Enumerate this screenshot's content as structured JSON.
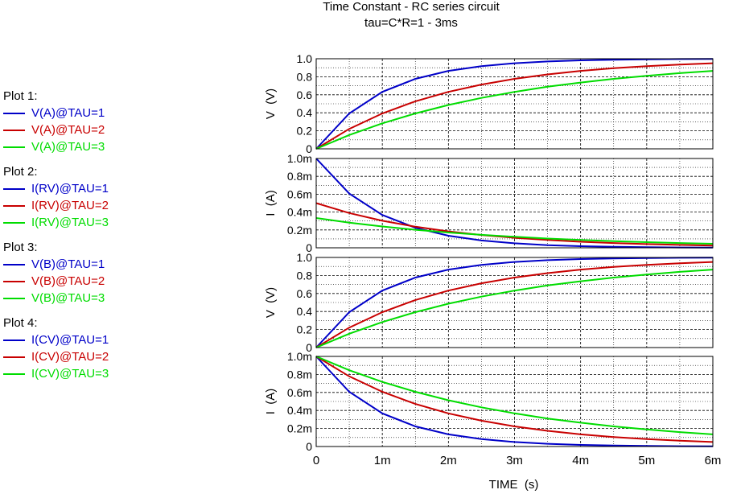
{
  "title": "Time Constant  -  RC series circuit",
  "subtitle": "tau=C*R=1 - 3ms",
  "colors": {
    "tau1": "#0000c8",
    "tau2": "#c80000",
    "tau3": "#00dc00",
    "grid": "#000000"
  },
  "legend": [
    {
      "heading": "Plot 1:",
      "entries": [
        {
          "label": "V(A)@TAU=1",
          "color": "#0000c8"
        },
        {
          "label": "V(A)@TAU=2",
          "color": "#c80000"
        },
        {
          "label": "V(A)@TAU=3",
          "color": "#00dc00"
        }
      ]
    },
    {
      "heading": "Plot 2:",
      "entries": [
        {
          "label": "I(RV)@TAU=1",
          "color": "#0000c8"
        },
        {
          "label": "I(RV)@TAU=2",
          "color": "#c80000"
        },
        {
          "label": "I(RV)@TAU=3",
          "color": "#00dc00"
        }
      ]
    },
    {
      "heading": "Plot 3:",
      "entries": [
        {
          "label": "V(B)@TAU=1",
          "color": "#0000c8"
        },
        {
          "label": "V(B)@TAU=2",
          "color": "#c80000"
        },
        {
          "label": "V(B)@TAU=3",
          "color": "#00dc00"
        }
      ]
    },
    {
      "heading": "Plot 4:",
      "entries": [
        {
          "label": "I(CV)@TAU=1",
          "color": "#0000c8"
        },
        {
          "label": "I(CV)@TAU=2",
          "color": "#c80000"
        },
        {
          "label": "I(CV)@TAU=3",
          "color": "#00dc00"
        }
      ]
    }
  ],
  "chart_data": {
    "type": "line",
    "title": "Time Constant  -  RC series circuit",
    "subtitle": "tau=C*R=1 - 3ms",
    "xlabel": "TIME  (s)",
    "xlim": [
      0,
      0.006
    ],
    "x_ticks": [
      0,
      0.001,
      0.002,
      0.003,
      0.004,
      0.005,
      0.006
    ],
    "x_tick_labels": [
      "0",
      "1m",
      "2m",
      "3m",
      "4m",
      "5m",
      "6m"
    ],
    "grid": true,
    "tau_values_s": [
      0.001,
      0.002,
      0.003
    ],
    "panels": [
      {
        "name": "Plot 1",
        "ylabel": "V  (V)",
        "ylim": [
          0,
          1.0
        ],
        "y_ticks": [
          0,
          0.2,
          0.4,
          0.6,
          0.8,
          1.0
        ],
        "y_tick_labels": [
          "0",
          "0.2",
          "0.4",
          "0.6",
          "0.8",
          "1.0"
        ],
        "series": [
          {
            "name": "V(A)@TAU=1",
            "color": "#0000c8",
            "x": [
              0,
              0.0005,
              0.001,
              0.0015,
              0.002,
              0.0025,
              0.003,
              0.0035,
              0.004,
              0.0045,
              0.005,
              0.0055,
              0.006
            ],
            "y": [
              0,
              0.393,
              0.632,
              0.777,
              0.865,
              0.918,
              0.95,
              0.97,
              0.982,
              0.989,
              0.993,
              0.996,
              0.998
            ]
          },
          {
            "name": "V(A)@TAU=2",
            "color": "#c80000",
            "x": [
              0,
              0.0005,
              0.001,
              0.0015,
              0.002,
              0.0025,
              0.003,
              0.0035,
              0.004,
              0.0045,
              0.005,
              0.0055,
              0.006
            ],
            "y": [
              0,
              0.221,
              0.393,
              0.528,
              0.632,
              0.713,
              0.777,
              0.826,
              0.865,
              0.895,
              0.918,
              0.936,
              0.95
            ]
          },
          {
            "name": "V(A)@TAU=3",
            "color": "#00dc00",
            "x": [
              0,
              0.0005,
              0.001,
              0.0015,
              0.002,
              0.0025,
              0.003,
              0.0035,
              0.004,
              0.0045,
              0.005,
              0.0055,
              0.006
            ],
            "y": [
              0,
              0.154,
              0.283,
              0.393,
              0.487,
              0.565,
              0.632,
              0.689,
              0.736,
              0.777,
              0.811,
              0.84,
              0.865
            ]
          }
        ]
      },
      {
        "name": "Plot 2",
        "ylabel": "I  (A)",
        "ylim": [
          0,
          0.001
        ],
        "y_ticks": [
          0,
          0.0002,
          0.0004,
          0.0006,
          0.0008,
          0.001
        ],
        "y_tick_labels": [
          "0",
          "0.2m",
          "0.4m",
          "0.6m",
          "0.8m",
          "1.0m"
        ],
        "series": [
          {
            "name": "I(RV)@TAU=1",
            "color": "#0000c8",
            "x": [
              0,
              0.0005,
              0.001,
              0.0015,
              0.002,
              0.0025,
              0.003,
              0.0035,
              0.004,
              0.0045,
              0.005,
              0.0055,
              0.006
            ],
            "y": [
              0.001,
              0.000607,
              0.000368,
              0.000223,
              0.000135,
              8.2e-05,
              5e-05,
              3e-05,
              1.8e-05,
              1.1e-05,
              7e-06,
              4e-06,
              2e-06
            ]
          },
          {
            "name": "I(RV)@TAU=2",
            "color": "#c80000",
            "x": [
              0,
              0.0005,
              0.001,
              0.0015,
              0.002,
              0.0025,
              0.003,
              0.0035,
              0.004,
              0.0045,
              0.005,
              0.0055,
              0.006
            ],
            "y": [
              0.0005,
              0.000389,
              0.000303,
              0.000236,
              0.000184,
              0.000143,
              0.000112,
              8.7e-05,
              6.8e-05,
              5.3e-05,
              4.1e-05,
              3.2e-05,
              2.5e-05
            ]
          },
          {
            "name": "I(RV)@TAU=3",
            "color": "#00dc00",
            "x": [
              0,
              0.0005,
              0.001,
              0.0015,
              0.002,
              0.0025,
              0.003,
              0.0035,
              0.004,
              0.0045,
              0.005,
              0.0055,
              0.006
            ],
            "y": [
              0.000333,
              0.000282,
              0.000239,
              0.000202,
              0.000171,
              0.000145,
              0.000123,
              0.000104,
              8.8e-05,
              7.4e-05,
              6.3e-05,
              5.3e-05,
              4.5e-05
            ]
          }
        ]
      },
      {
        "name": "Plot 3",
        "ylabel": "V  (V)",
        "ylim": [
          0,
          1.0
        ],
        "y_ticks": [
          0,
          0.2,
          0.4,
          0.6,
          0.8,
          1.0
        ],
        "y_tick_labels": [
          "0",
          "0.2",
          "0.4",
          "0.6",
          "0.8",
          "1.0"
        ],
        "series": [
          {
            "name": "V(B)@TAU=1",
            "color": "#0000c8",
            "x": [
              0,
              0.0005,
              0.001,
              0.0015,
              0.002,
              0.0025,
              0.003,
              0.0035,
              0.004,
              0.0045,
              0.005,
              0.0055,
              0.006
            ],
            "y": [
              0,
              0.393,
              0.632,
              0.777,
              0.865,
              0.918,
              0.95,
              0.97,
              0.982,
              0.989,
              0.993,
              0.996,
              0.998
            ]
          },
          {
            "name": "V(B)@TAU=2",
            "color": "#c80000",
            "x": [
              0,
              0.0005,
              0.001,
              0.0015,
              0.002,
              0.0025,
              0.003,
              0.0035,
              0.004,
              0.0045,
              0.005,
              0.0055,
              0.006
            ],
            "y": [
              0,
              0.221,
              0.393,
              0.528,
              0.632,
              0.713,
              0.777,
              0.826,
              0.865,
              0.895,
              0.918,
              0.936,
              0.95
            ]
          },
          {
            "name": "V(B)@TAU=3",
            "color": "#00dc00",
            "x": [
              0,
              0.0005,
              0.001,
              0.0015,
              0.002,
              0.0025,
              0.003,
              0.0035,
              0.004,
              0.0045,
              0.005,
              0.0055,
              0.006
            ],
            "y": [
              0,
              0.154,
              0.283,
              0.393,
              0.487,
              0.565,
              0.632,
              0.689,
              0.736,
              0.777,
              0.811,
              0.84,
              0.865
            ]
          }
        ]
      },
      {
        "name": "Plot 4",
        "ylabel": "I  (A)",
        "ylim": [
          0,
          0.001
        ],
        "y_ticks": [
          0,
          0.0002,
          0.0004,
          0.0006,
          0.0008,
          0.001
        ],
        "y_tick_labels": [
          "0",
          "0.2m",
          "0.4m",
          "0.6m",
          "0.8m",
          "1.0m"
        ],
        "series": [
          {
            "name": "I(CV)@TAU=1",
            "color": "#0000c8",
            "x": [
              0,
              0.0005,
              0.001,
              0.0015,
              0.002,
              0.0025,
              0.003,
              0.0035,
              0.004,
              0.0045,
              0.005,
              0.0055,
              0.006
            ],
            "y": [
              0.001,
              0.000607,
              0.000368,
              0.000223,
              0.000135,
              8.2e-05,
              5e-05,
              3e-05,
              1.8e-05,
              1.1e-05,
              7e-06,
              4e-06,
              2e-06
            ]
          },
          {
            "name": "I(CV)@TAU=2",
            "color": "#c80000",
            "x": [
              0,
              0.0005,
              0.001,
              0.0015,
              0.002,
              0.0025,
              0.003,
              0.0035,
              0.004,
              0.0045,
              0.005,
              0.0055,
              0.006
            ],
            "y": [
              0.001,
              0.000779,
              0.000607,
              0.000472,
              0.000368,
              0.000287,
              0.000223,
              0.000174,
              0.000135,
              0.000105,
              8.2e-05,
              6.4e-05,
              5e-05
            ]
          },
          {
            "name": "I(CV)@TAU=3",
            "color": "#00dc00",
            "x": [
              0,
              0.0005,
              0.001,
              0.0015,
              0.002,
              0.0025,
              0.003,
              0.0035,
              0.004,
              0.0045,
              0.005,
              0.0055,
              0.006
            ],
            "y": [
              0.001,
              0.000846,
              0.000717,
              0.000607,
              0.000513,
              0.000435,
              0.000368,
              0.000311,
              0.000264,
              0.000223,
              0.000189,
              0.00016,
              0.000135
            ]
          }
        ]
      }
    ]
  }
}
